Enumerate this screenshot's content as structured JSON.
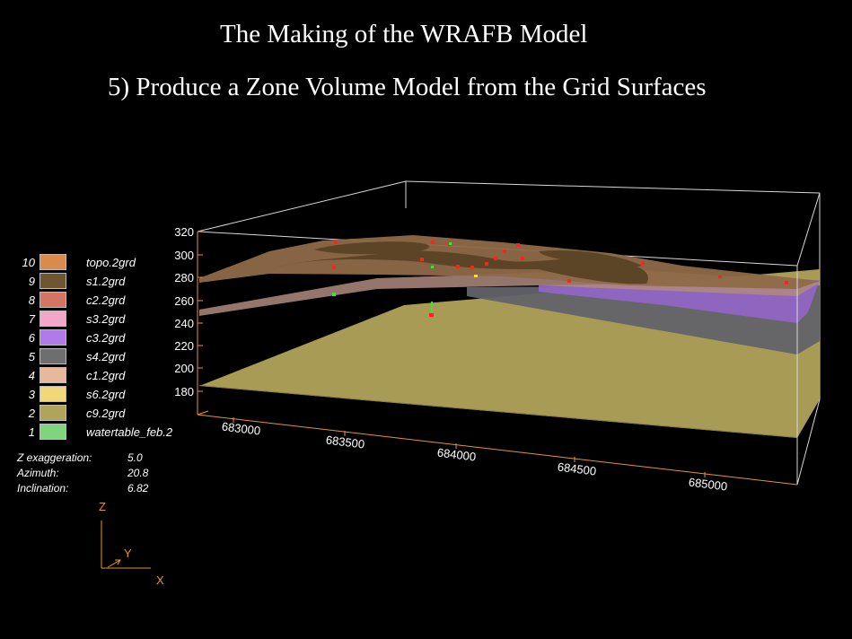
{
  "title": {
    "main": "The Making of the WRAFB Model",
    "sub": "5) Produce a Zone Volume Model from the Grid Surfaces"
  },
  "legend": [
    {
      "num": "10",
      "name": "topo.2grd",
      "color": "#d98a4c"
    },
    {
      "num": "9",
      "name": "s1.2grd",
      "color": "#6e5632"
    },
    {
      "num": "8",
      "name": "c2.2grd",
      "color": "#d47462"
    },
    {
      "num": "7",
      "name": "s3.2grd",
      "color": "#f2a7c8"
    },
    {
      "num": "6",
      "name": "c3.2grd",
      "color": "#b07be8"
    },
    {
      "num": "5",
      "name": "s4.2grd",
      "color": "#6e6e6e"
    },
    {
      "num": "4",
      "name": "c1.2grd",
      "color": "#e8b89c"
    },
    {
      "num": "3",
      "name": "s6.2grd",
      "color": "#f2d77a"
    },
    {
      "num": "2",
      "name": "c9.2grd",
      "color": "#b0a35a"
    },
    {
      "num": "1",
      "name": "watertable_feb.2",
      "color": "#7fd47f"
    }
  ],
  "view": {
    "z_exaggeration_label": "Z  exaggeration:",
    "z_exaggeration": "5.0",
    "azimuth_label": "Azimuth:",
    "azimuth": "20.8",
    "inclination_label": "Inclination:",
    "inclination": "6.82"
  },
  "axes": {
    "z_ticks": [
      "320",
      "300",
      "280",
      "260",
      "240",
      "220",
      "200",
      "180"
    ],
    "x_ticks": [
      "683000",
      "683500",
      "684000",
      "684500",
      "685000"
    ],
    "orientation": {
      "z": "Z",
      "y": "Y",
      "x": "X"
    }
  },
  "colors": {
    "background": "#000000",
    "axis": "#e8952a",
    "frame": "#d8d8d8"
  }
}
